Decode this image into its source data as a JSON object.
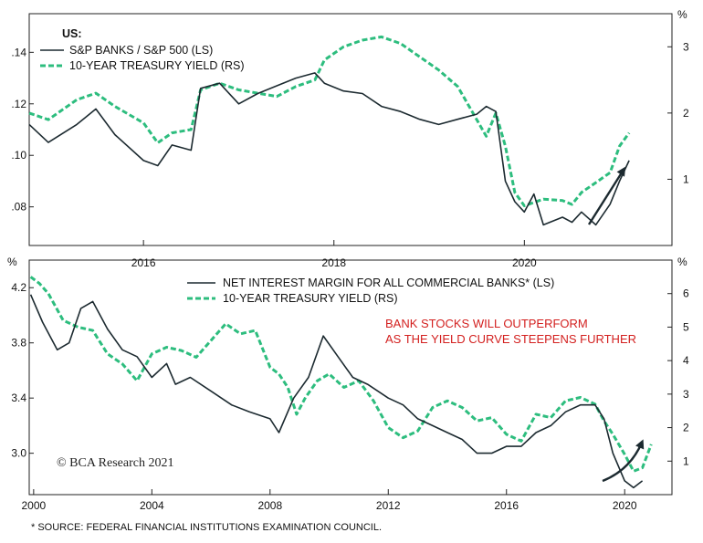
{
  "colors": {
    "banks": "#1c2a30",
    "yield": "#2dbd7e",
    "annotation": "#d3201f",
    "arrow": "#1c2a30"
  },
  "copyright": "© BCA Research 2021",
  "footnote": "* SOURCE: FEDERAL FINANCIAL INSTITUTIONS EXAMINATION COUNCIL.",
  "chart_data": [
    {
      "type": "line",
      "legend_title": "US:",
      "legend_placement": "top-left",
      "x_range": [
        2014.8,
        2021.55
      ],
      "x_ticks": [
        {
          "x": 2016,
          "label": "2016"
        },
        {
          "x": 2018,
          "label": "2018"
        },
        {
          "x": 2020,
          "label": "2020"
        }
      ],
      "y_left": {
        "unit": "",
        "range": [
          0.065,
          0.155
        ],
        "ticks": [
          {
            "v": 0.08,
            "label": ".08"
          },
          {
            "v": 0.1,
            "label": ".10"
          },
          {
            "v": 0.12,
            "label": ".12"
          },
          {
            "v": 0.14,
            "label": ".14"
          }
        ]
      },
      "y_right": {
        "unit": "%",
        "range": [
          0.0,
          3.5
        ],
        "ticks": [
          {
            "v": 1,
            "label": "1"
          },
          {
            "v": 2,
            "label": "2"
          },
          {
            "v": 3,
            "label": "3"
          }
        ]
      },
      "series": [
        {
          "name": "S&P BANKS / S&P 500 (LS)",
          "axis": "left",
          "style": "solid",
          "x": [
            2014.8,
            2015.0,
            2015.3,
            2015.5,
            2015.7,
            2016.0,
            2016.15,
            2016.3,
            2016.5,
            2016.6,
            2016.8,
            2017.0,
            2017.2,
            2017.4,
            2017.6,
            2017.8,
            2017.9,
            2018.1,
            2018.3,
            2018.5,
            2018.7,
            2018.9,
            2019.1,
            2019.3,
            2019.5,
            2019.6,
            2019.7,
            2019.8,
            2019.9,
            2020.0,
            2020.1,
            2020.2,
            2020.4,
            2020.5,
            2020.6,
            2020.75,
            2020.9,
            2021.0,
            2021.1
          ],
          "values": [
            0.112,
            0.105,
            0.112,
            0.118,
            0.108,
            0.098,
            0.096,
            0.104,
            0.102,
            0.126,
            0.128,
            0.12,
            0.124,
            0.127,
            0.13,
            0.132,
            0.128,
            0.125,
            0.124,
            0.119,
            0.117,
            0.114,
            0.112,
            0.114,
            0.116,
            0.119,
            0.117,
            0.09,
            0.082,
            0.078,
            0.085,
            0.073,
            0.076,
            0.074,
            0.078,
            0.073,
            0.081,
            0.09,
            0.098
          ]
        },
        {
          "name": "10-YEAR TREASURY YIELD (RS)",
          "axis": "right",
          "style": "dashed",
          "x": [
            2014.8,
            2015.0,
            2015.3,
            2015.5,
            2015.7,
            2016.0,
            2016.15,
            2016.3,
            2016.5,
            2016.6,
            2016.8,
            2017.0,
            2017.2,
            2017.4,
            2017.6,
            2017.8,
            2017.9,
            2018.1,
            2018.3,
            2018.5,
            2018.7,
            2018.9,
            2019.1,
            2019.3,
            2019.5,
            2019.6,
            2019.7,
            2019.8,
            2019.9,
            2020.0,
            2020.1,
            2020.2,
            2020.4,
            2020.5,
            2020.6,
            2020.75,
            2020.9,
            2021.0,
            2021.1
          ],
          "values": [
            2.0,
            1.9,
            2.2,
            2.3,
            2.1,
            1.85,
            1.55,
            1.7,
            1.75,
            2.35,
            2.45,
            2.35,
            2.3,
            2.25,
            2.4,
            2.5,
            2.8,
            3.0,
            3.1,
            3.15,
            3.05,
            2.85,
            2.65,
            2.4,
            1.9,
            1.65,
            2.0,
            1.5,
            0.8,
            0.6,
            0.65,
            0.7,
            0.68,
            0.62,
            0.8,
            0.95,
            1.1,
            1.5,
            1.7
          ]
        }
      ]
    },
    {
      "type": "line",
      "legend_placement": "top-center",
      "x_range": [
        1999.85,
        2021.6
      ],
      "x_ticks": [
        {
          "x": 2000,
          "label": "2000"
        },
        {
          "x": 2004,
          "label": "2004"
        },
        {
          "x": 2008,
          "label": "2008"
        },
        {
          "x": 2012,
          "label": "2012"
        },
        {
          "x": 2016,
          "label": "2016"
        },
        {
          "x": 2020,
          "label": "2020"
        }
      ],
      "y_left": {
        "unit": "%",
        "range": [
          2.7,
          4.4
        ],
        "ticks": [
          {
            "v": 3.0,
            "label": "3.0"
          },
          {
            "v": 3.4,
            "label": "3.4"
          },
          {
            "v": 3.8,
            "label": "3.8"
          },
          {
            "v": 4.2,
            "label": "4.2"
          }
        ]
      },
      "y_right": {
        "unit": "%",
        "range": [
          0.0,
          7.0
        ],
        "ticks": [
          {
            "v": 1,
            "label": "1"
          },
          {
            "v": 2,
            "label": "2"
          },
          {
            "v": 3,
            "label": "3"
          },
          {
            "v": 4,
            "label": "4"
          },
          {
            "v": 5,
            "label": "5"
          },
          {
            "v": 6,
            "label": "6"
          }
        ]
      },
      "annotation": [
        "BANK STOCKS WILL OUTPERFORM",
        "AS THE YIELD CURVE STEEPENS FURTHER"
      ],
      "series": [
        {
          "name": "NET INTEREST MARGIN FOR ALL COMMERCIAL BANKS* (LS)",
          "axis": "left",
          "style": "solid",
          "x": [
            1999.9,
            2000.3,
            2000.8,
            2001.2,
            2001.6,
            2002.0,
            2002.5,
            2003.0,
            2003.5,
            2004.0,
            2004.5,
            2004.8,
            2005.3,
            2006.0,
            2006.7,
            2007.3,
            2008.0,
            2008.3,
            2008.8,
            2009.3,
            2009.8,
            2010.3,
            2010.8,
            2011.3,
            2012.0,
            2012.5,
            2013.0,
            2013.5,
            2014.0,
            2014.5,
            2015.0,
            2015.5,
            2016.0,
            2016.5,
            2017.0,
            2017.5,
            2018.0,
            2018.5,
            2019.0,
            2019.3,
            2019.6,
            2020.0,
            2020.3,
            2020.6
          ],
          "values": [
            4.15,
            3.95,
            3.75,
            3.8,
            4.05,
            4.1,
            3.9,
            3.75,
            3.7,
            3.55,
            3.65,
            3.5,
            3.55,
            3.45,
            3.35,
            3.3,
            3.25,
            3.15,
            3.4,
            3.55,
            3.85,
            3.7,
            3.55,
            3.5,
            3.4,
            3.35,
            3.25,
            3.2,
            3.15,
            3.1,
            3.0,
            3.0,
            3.05,
            3.05,
            3.15,
            3.2,
            3.3,
            3.35,
            3.35,
            3.25,
            3.0,
            2.8,
            2.75,
            2.8
          ]
        },
        {
          "name": "10-YEAR TREASURY YIELD (RS)",
          "axis": "right",
          "style": "dashed",
          "x": [
            1999.9,
            2000.2,
            2000.5,
            2001.0,
            2001.5,
            2002.0,
            2002.5,
            2003.0,
            2003.5,
            2004.0,
            2004.5,
            2005.0,
            2005.5,
            2006.0,
            2006.5,
            2007.0,
            2007.5,
            2008.0,
            2008.3,
            2008.6,
            2008.9,
            2009.2,
            2009.6,
            2010.0,
            2010.5,
            2011.0,
            2011.5,
            2012.0,
            2012.5,
            2013.0,
            2013.5,
            2014.0,
            2014.5,
            2015.0,
            2015.5,
            2016.0,
            2016.5,
            2017.0,
            2017.5,
            2018.0,
            2018.5,
            2019.0,
            2019.3,
            2019.6,
            2020.0,
            2020.3,
            2020.6,
            2020.9
          ],
          "values": [
            6.5,
            6.3,
            6.0,
            5.2,
            5.0,
            4.9,
            4.2,
            3.9,
            3.4,
            4.2,
            4.4,
            4.3,
            4.1,
            4.6,
            5.1,
            4.8,
            4.9,
            3.8,
            3.6,
            3.2,
            2.4,
            2.9,
            3.4,
            3.6,
            3.2,
            3.4,
            2.8,
            2.0,
            1.7,
            1.9,
            2.6,
            2.8,
            2.6,
            2.2,
            2.3,
            1.8,
            1.6,
            2.4,
            2.3,
            2.8,
            2.9,
            2.7,
            2.2,
            1.8,
            1.2,
            0.7,
            0.8,
            1.5
          ]
        }
      ]
    }
  ]
}
